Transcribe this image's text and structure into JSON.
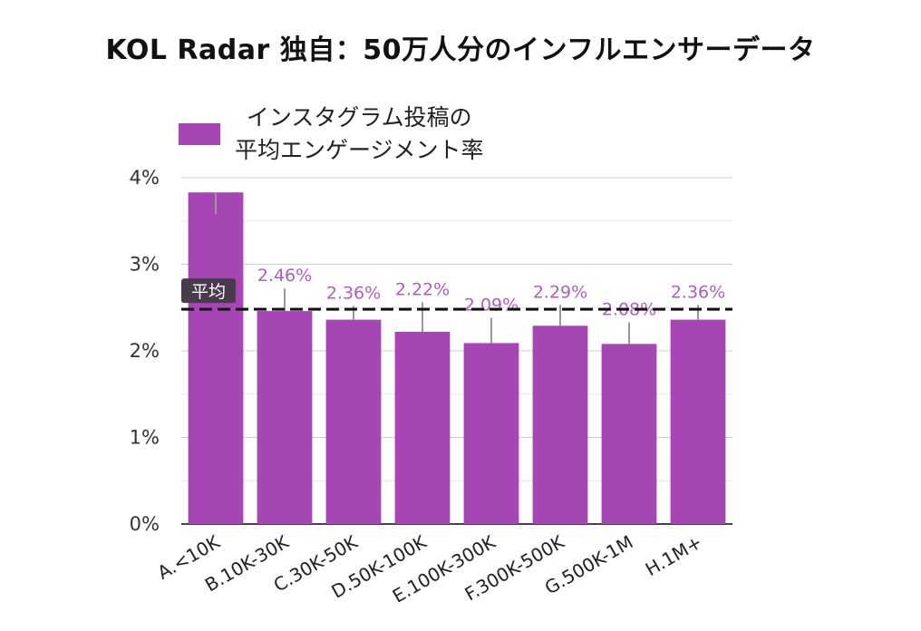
{
  "title": "KOL Radar 独自：50万人分のインフルエンサーデータ",
  "chart_data": {
    "type": "bar",
    "legend": {
      "label_lines": [
        "インスタグラム投稿の",
        "平均エンゲージメント率"
      ],
      "color": "#a646b4",
      "placement": "top-left"
    },
    "categories": [
      "A.<10K",
      "B.10K-30K",
      "C.30K-50K",
      "D.50K-100K",
      "E.100K-300K",
      "F.300K-500K",
      "G.500K-1M",
      "H.1M+"
    ],
    "values": [
      3.83,
      2.46,
      2.36,
      2.22,
      2.09,
      2.29,
      2.08,
      2.36
    ],
    "data_labels": [
      "",
      "2.46%",
      "2.36%",
      "2.22%",
      "2.09%",
      "2.29%",
      "2.08%",
      "2.36%"
    ],
    "error_high": [
      3.83,
      2.72,
      2.52,
      2.56,
      2.38,
      2.53,
      2.33,
      2.53
    ],
    "error_low": [
      3.58,
      2.46,
      2.36,
      2.22,
      2.09,
      2.29,
      2.08,
      2.36
    ],
    "reference_line": {
      "label": "平均",
      "value": 2.48
    },
    "y_ticks": [
      "0%",
      "1%",
      "2%",
      "3%",
      "4%"
    ],
    "ylim": [
      0,
      4
    ],
    "grid": true,
    "bar_color": "#a646b4",
    "xlabel": "",
    "ylabel": ""
  }
}
